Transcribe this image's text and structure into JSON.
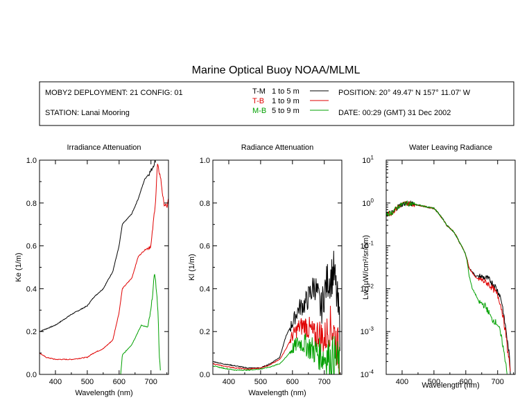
{
  "title": "Marine Optical Buoy NOAA/MLML",
  "info": {
    "deployment": "MOBY2 DEPLOYMENT: 21 CONFIG: 01",
    "station": "STATION: Lanai Mooring",
    "position": "POSITION: 20° 49.47' N   157° 11.07' W",
    "date": "DATE: 00:29 (GMT) 31 Dec 2002"
  },
  "legend": [
    {
      "code": "T-M",
      "range": "1 to 5  m",
      "color": "#000000"
    },
    {
      "code": "T-B",
      "range": "1 to 9  m",
      "color": "#e00000"
    },
    {
      "code": "M-B",
      "range": "5 to 9  m",
      "color": "#00a000"
    }
  ],
  "chart_data": [
    {
      "type": "line",
      "title": "Irradiance Attenuation",
      "xlabel": "Wavelength (nm)",
      "ylabel": "Ke  (1/m)",
      "xlim": [
        350,
        755
      ],
      "ylim": [
        0,
        1
      ],
      "xticks": [
        400,
        500,
        600,
        700
      ],
      "yticks": [
        "0.0",
        "0.2",
        "0.4",
        "0.6",
        "0.8",
        "1.0"
      ],
      "series": [
        {
          "name": "T-M",
          "color": "#000000",
          "x": [
            350,
            400,
            450,
            500,
            520,
            550,
            580,
            600,
            610,
            640,
            660,
            680,
            700,
            715
          ],
          "y": [
            0.2,
            0.23,
            0.28,
            0.32,
            0.36,
            0.4,
            0.48,
            0.6,
            0.7,
            0.75,
            0.82,
            0.91,
            0.95,
            1.0
          ]
        },
        {
          "name": "T-B",
          "color": "#e00000",
          "x": [
            350,
            370,
            400,
            450,
            500,
            520,
            550,
            580,
            600,
            610,
            640,
            660,
            680,
            700,
            715,
            720,
            730,
            740,
            750,
            755
          ],
          "y": [
            0.1,
            0.08,
            0.07,
            0.07,
            0.08,
            0.1,
            0.12,
            0.16,
            0.29,
            0.4,
            0.45,
            0.55,
            0.58,
            0.6,
            0.82,
            0.98,
            0.92,
            0.8,
            0.78,
            0.82
          ]
        },
        {
          "name": "M-B",
          "color": "#00a000",
          "x": [
            605,
            610,
            640,
            660,
            670,
            690,
            700,
            712,
            718,
            722,
            726,
            730
          ],
          "y": [
            0.0,
            0.09,
            0.14,
            0.2,
            0.23,
            0.22,
            0.3,
            0.48,
            0.37,
            0.3,
            0.1,
            0.0
          ]
        }
      ]
    },
    {
      "type": "line",
      "title": "Radiance Attenuation",
      "xlabel": "Wavelength (nm)",
      "ylabel": "Kl  (1/m)",
      "xlim": [
        350,
        755
      ],
      "ylim": [
        0,
        1
      ],
      "xticks": [
        400,
        500,
        600,
        700
      ],
      "yticks": [
        "0.0",
        "0.2",
        "0.4",
        "0.6",
        "0.8",
        "1.0"
      ],
      "series": [
        {
          "name": "T-M",
          "color": "#000000",
          "x": [
            350,
            380,
            420,
            460,
            500,
            530,
            560,
            580,
            600,
            620,
            640,
            660,
            670,
            680,
            690,
            700,
            710,
            720,
            730,
            740,
            750
          ],
          "y": [
            0.06,
            0.05,
            0.04,
            0.03,
            0.03,
            0.05,
            0.08,
            0.18,
            0.24,
            0.31,
            0.33,
            0.39,
            0.42,
            0.36,
            0.3,
            0.38,
            0.44,
            0.45,
            0.48,
            0.35,
            0.2
          ]
        },
        {
          "name": "T-B",
          "color": "#e00000",
          "x": [
            350,
            380,
            420,
            460,
            500,
            530,
            560,
            580,
            600,
            620,
            640,
            660,
            670,
            680,
            690,
            700,
            710,
            720,
            730,
            740,
            750
          ],
          "y": [
            0.05,
            0.04,
            0.03,
            0.025,
            0.03,
            0.045,
            0.07,
            0.12,
            0.18,
            0.22,
            0.23,
            0.2,
            0.17,
            0.2,
            0.18,
            0.16,
            0.2,
            0.23,
            0.2,
            0.14,
            0.06
          ]
        },
        {
          "name": "M-B",
          "color": "#00a000",
          "x": [
            350,
            380,
            420,
            460,
            500,
            530,
            560,
            580,
            600,
            620,
            640,
            660,
            680,
            700,
            710,
            720,
            730,
            740,
            750
          ],
          "y": [
            0.04,
            0.03,
            0.02,
            0.02,
            0.025,
            0.035,
            0.05,
            0.08,
            0.12,
            0.15,
            0.14,
            0.12,
            0.1,
            0.08,
            0.09,
            0.07,
            0.09,
            0.06,
            0.02
          ]
        }
      ]
    },
    {
      "type": "line",
      "title": "Water Leaving Radiance",
      "xlabel": "Wavelength (nm)",
      "ylabel": "Lw  (µW/cm²/sr/nm)",
      "yscale": "log",
      "xlim": [
        350,
        755
      ],
      "ylim": [
        0.0001,
        10
      ],
      "xticks": [
        400,
        500,
        600,
        700
      ],
      "yticks_exp": [
        -4,
        -3,
        -2,
        -1,
        0,
        1
      ],
      "series": [
        {
          "name": "T-M",
          "color": "#000000",
          "x": [
            350,
            370,
            390,
            410,
            430,
            450,
            480,
            500,
            520,
            540,
            560,
            580,
            600,
            610,
            630,
            650,
            670,
            690,
            700,
            710,
            720,
            730,
            740
          ],
          "y": [
            0.55,
            0.6,
            0.85,
            1.0,
            0.95,
            0.9,
            0.8,
            0.75,
            0.5,
            0.3,
            0.22,
            0.12,
            0.06,
            0.03,
            0.02,
            0.019,
            0.017,
            0.012,
            0.009,
            0.006,
            0.002,
            0.0006,
            0.0001
          ]
        },
        {
          "name": "T-B",
          "color": "#e00000",
          "x": [
            350,
            370,
            390,
            410,
            430,
            450,
            480,
            500,
            520,
            540,
            560,
            580,
            600,
            610,
            630,
            650,
            670,
            690,
            700,
            710,
            720,
            730,
            740
          ],
          "y": [
            0.55,
            0.6,
            0.85,
            1.0,
            0.95,
            0.9,
            0.8,
            0.75,
            0.5,
            0.3,
            0.22,
            0.12,
            0.06,
            0.03,
            0.018,
            0.016,
            0.013,
            0.009,
            0.007,
            0.004,
            0.0015,
            0.0004,
            0.0001
          ]
        },
        {
          "name": "M-B",
          "color": "#00a000",
          "x": [
            350,
            370,
            390,
            410,
            430,
            450,
            480,
            500,
            520,
            540,
            560,
            580,
            600,
            610,
            620,
            640,
            660,
            680,
            700,
            710,
            720,
            730
          ],
          "y": [
            0.55,
            0.6,
            0.85,
            1.0,
            0.95,
            0.9,
            0.8,
            0.75,
            0.5,
            0.3,
            0.22,
            0.12,
            0.06,
            0.02,
            0.01,
            0.005,
            0.004,
            0.002,
            0.0015,
            0.0008,
            0.0003,
            0.0001
          ]
        }
      ]
    }
  ]
}
